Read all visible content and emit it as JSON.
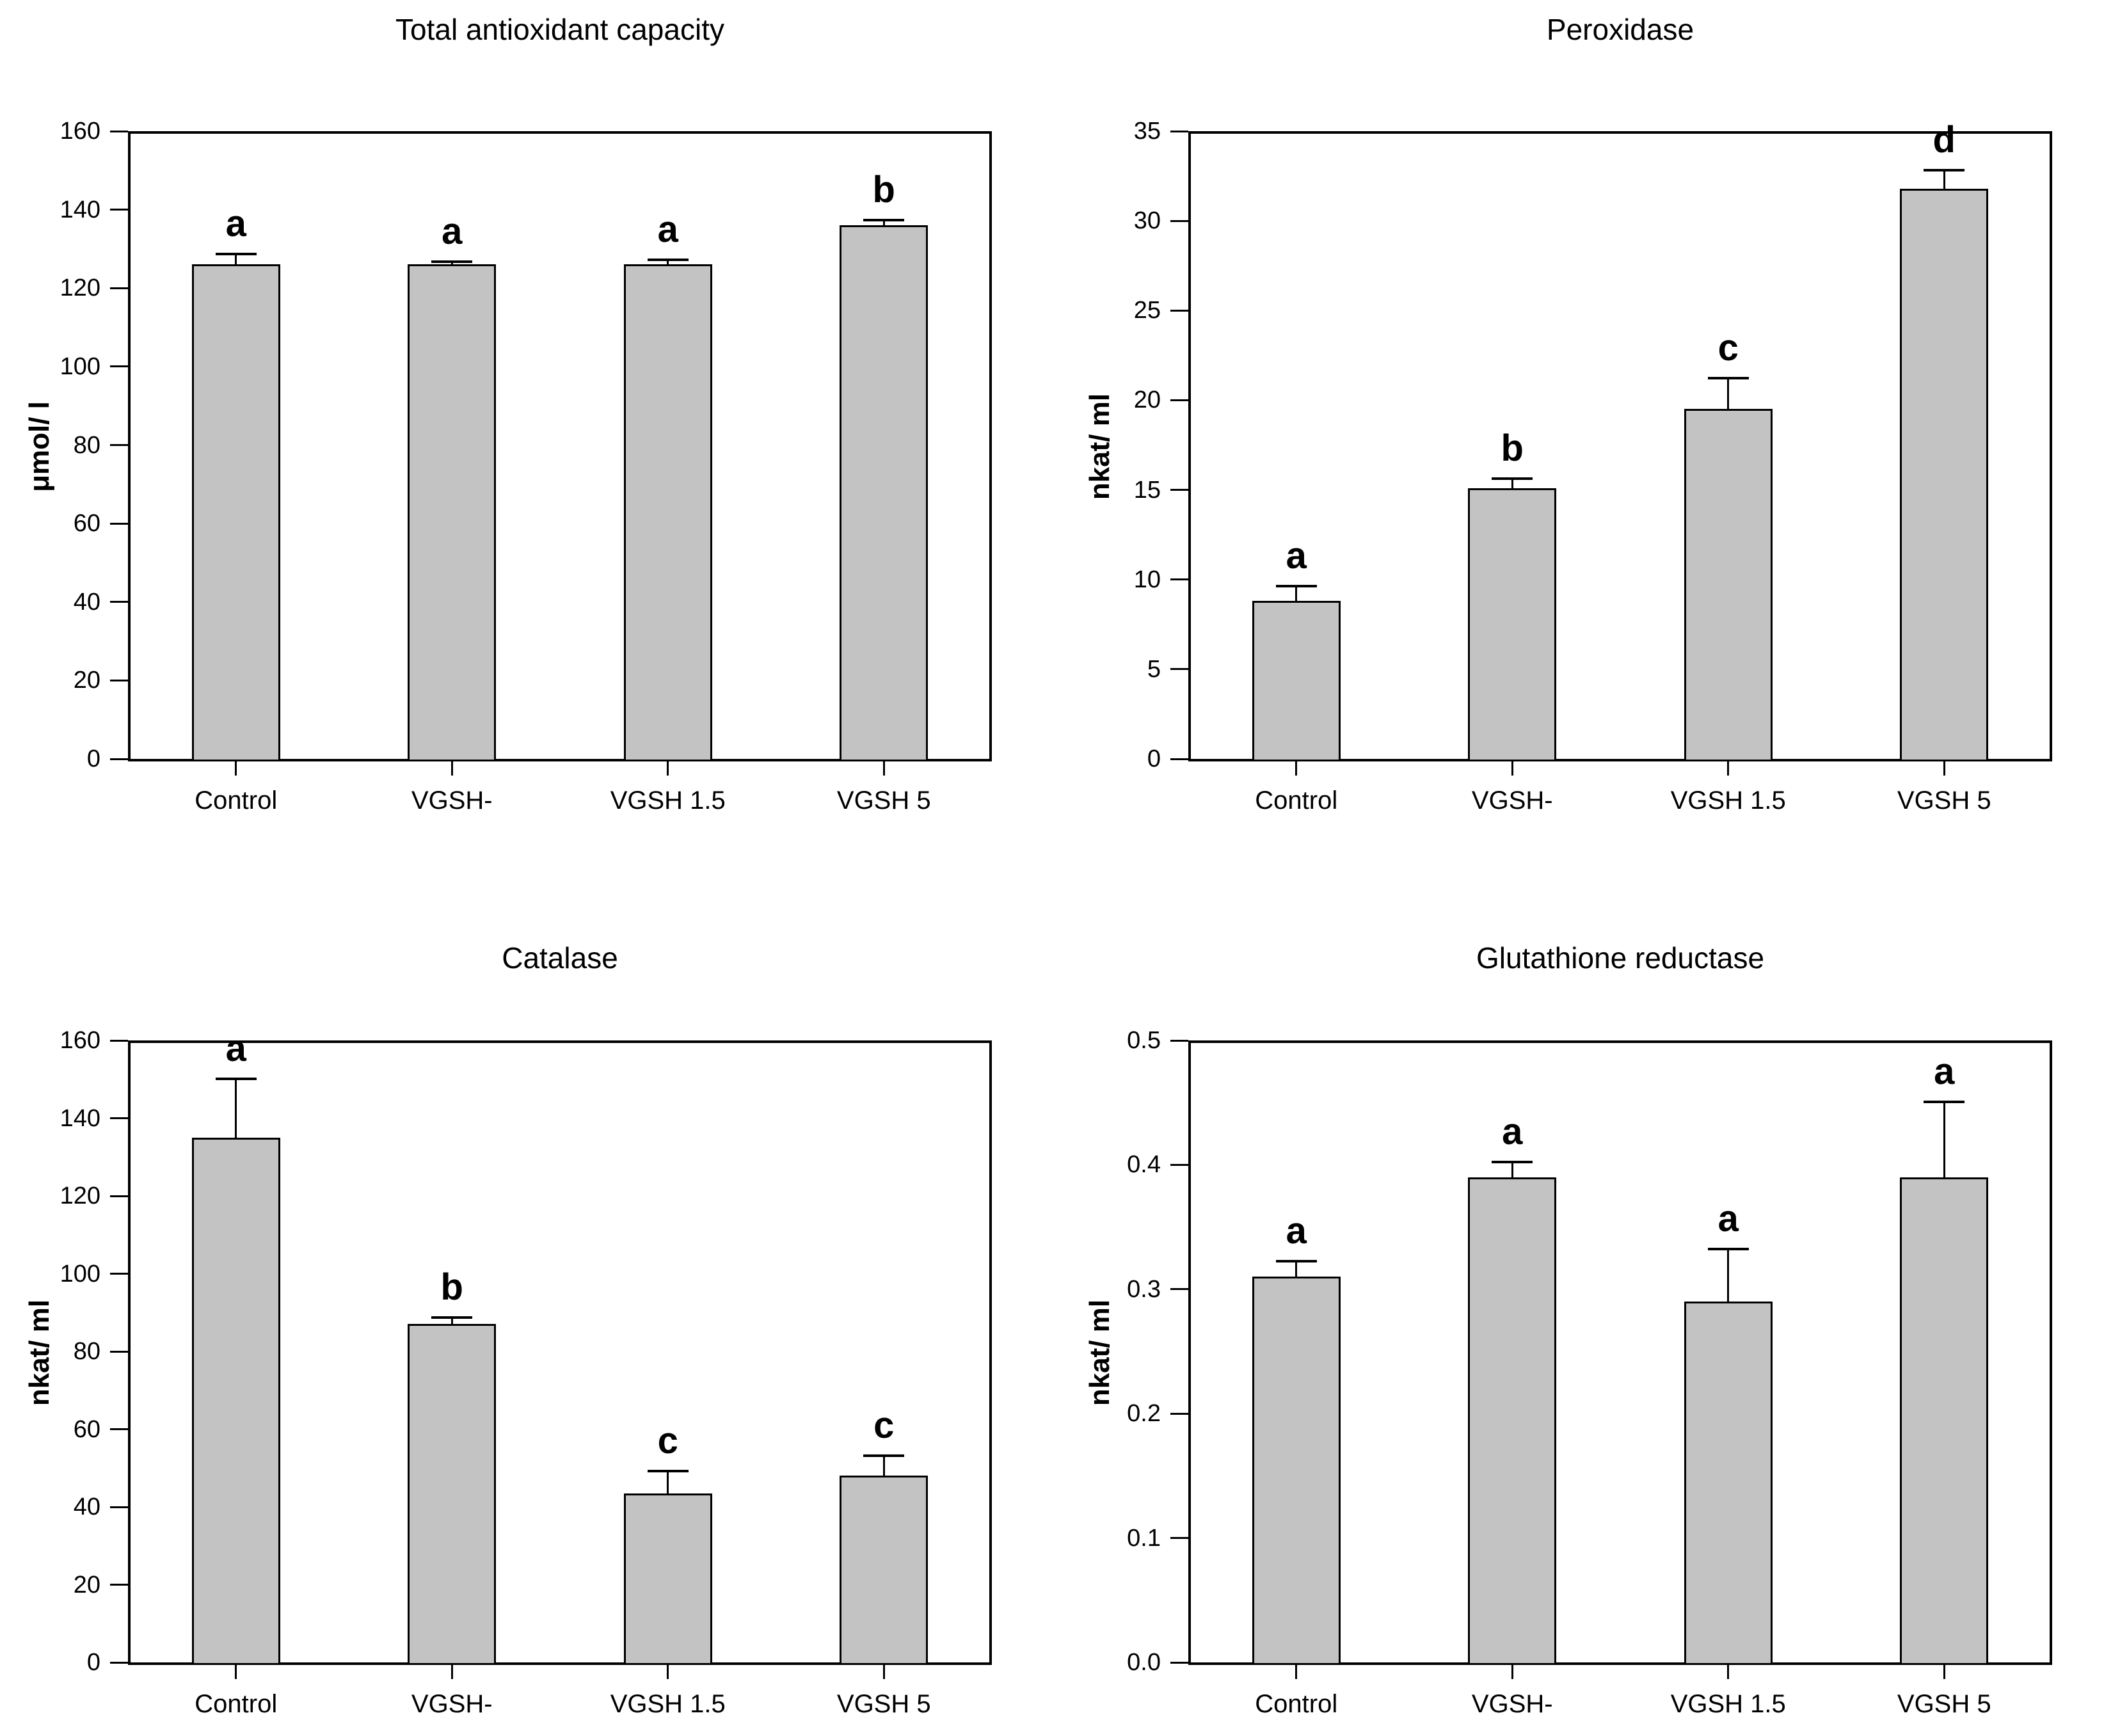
{
  "chart_data": [
    {
      "type": "bar",
      "title": "Total antioxidant capacity",
      "ylabel": "μmol/ l",
      "categories": [
        "Control",
        "VGSH-",
        "VGSH 1.5",
        "VGSH 5"
      ],
      "values": [
        126,
        126,
        126,
        136
      ],
      "errors": [
        2.5,
        0.5,
        1.0,
        1.2
      ],
      "sig_labels": [
        "a",
        "a",
        "a",
        "b"
      ],
      "ylim": [
        0,
        160
      ],
      "ytick_step": 20,
      "ytick_labels": [
        "0",
        "20",
        "40",
        "60",
        "80",
        "100",
        "120",
        "140",
        "160"
      ],
      "bar_color": "#c3c3c3",
      "grid": false,
      "legend": null
    },
    {
      "type": "bar",
      "title": "Peroxidase",
      "ylabel": "nkat/ ml",
      "categories": [
        "Control",
        "VGSH-",
        "VGSH 1.5",
        "VGSH 5"
      ],
      "values": [
        8.8,
        15.1,
        19.5,
        31.8
      ],
      "errors": [
        0.8,
        0.5,
        1.7,
        1.0
      ],
      "sig_labels": [
        "a",
        "b",
        "c",
        "d"
      ],
      "ylim": [
        0,
        35
      ],
      "ytick_step": 5,
      "ytick_labels": [
        "0",
        "5",
        "10",
        "15",
        "20",
        "25",
        "30",
        "35"
      ],
      "bar_color": "#c3c3c3",
      "grid": false,
      "legend": null
    },
    {
      "type": "bar",
      "title": "Catalase",
      "ylabel": "nkat/ ml",
      "categories": [
        "Control",
        "VGSH-",
        "VGSH 1.5",
        "VGSH 5"
      ],
      "values": [
        135,
        87,
        43.5,
        48
      ],
      "errors": [
        15,
        1.5,
        5.5,
        5
      ],
      "sig_labels": [
        "a",
        "b",
        "c",
        "c"
      ],
      "ylim": [
        0,
        160
      ],
      "ytick_step": 20,
      "ytick_labels": [
        "0",
        "20",
        "40",
        "60",
        "80",
        "100",
        "120",
        "140",
        "160"
      ],
      "bar_color": "#c3c3c3",
      "grid": false,
      "legend": null
    },
    {
      "type": "bar",
      "title": "Glutathione reductase",
      "ylabel": "nkat/ ml",
      "categories": [
        "Control",
        "VGSH-",
        "VGSH 1.5",
        "VGSH 5"
      ],
      "values": [
        0.31,
        0.39,
        0.29,
        0.39
      ],
      "errors": [
        0.012,
        0.012,
        0.042,
        0.06
      ],
      "sig_labels": [
        "a",
        "a",
        "a",
        "a"
      ],
      "ylim": [
        0,
        0.5
      ],
      "ytick_step": 0.1,
      "ytick_labels": [
        "0.0",
        "0.1",
        "0.2",
        "0.3",
        "0.4",
        "0.5"
      ],
      "bar_color": "#c3c3c3",
      "grid": false,
      "legend": null
    }
  ]
}
